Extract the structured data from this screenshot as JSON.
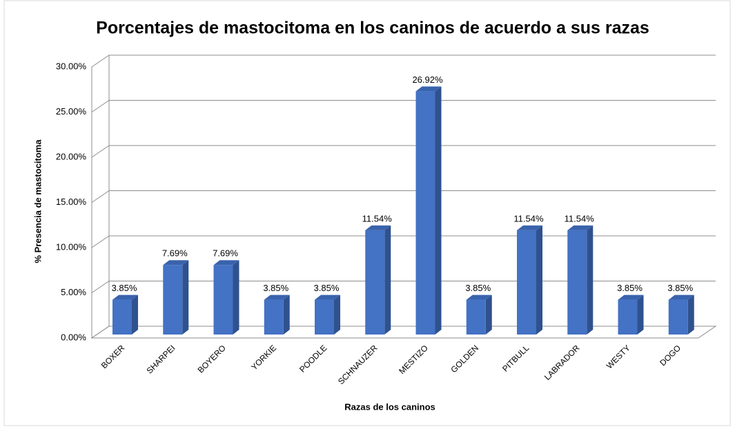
{
  "chart_data": {
    "type": "bar3d",
    "title": "Porcentajes de mastocitoma en los caninos de acuerdo a sus razas",
    "x_label": "Razas de los caninos",
    "y_label": "% Presencia de mastocitoma",
    "categories": [
      "BOXER",
      "SHARPEI",
      "BOYERO",
      "YORKIE",
      "POODLE",
      "SCHNAUZER",
      "MESTIZO",
      "GOLDEN",
      "PITBULL",
      "LABRADOR",
      "WESTY",
      "DOGO"
    ],
    "values": [
      3.85,
      7.69,
      7.69,
      3.85,
      3.85,
      11.54,
      26.92,
      3.85,
      11.54,
      11.54,
      3.85,
      3.85
    ],
    "value_labels": [
      "3.85%",
      "7.69%",
      "7.69%",
      "3.85%",
      "3.85%",
      "11.54%",
      "26.92%",
      "3.85%",
      "11.54%",
      "11.54%",
      "3.85%",
      "3.85%"
    ],
    "color": "#4472c4",
    "ylim": [
      0,
      30
    ],
    "yticks": [
      {
        "value": 0,
        "label": "0.00%"
      },
      {
        "value": 5,
        "label": "5.00%"
      },
      {
        "value": 10,
        "label": "10.00%"
      },
      {
        "value": 15,
        "label": "15.00%"
      },
      {
        "value": 20,
        "label": "20.00%"
      },
      {
        "value": 25,
        "label": "25.00%"
      },
      {
        "value": 30,
        "label": "30.00%"
      }
    ],
    "grid": true
  }
}
